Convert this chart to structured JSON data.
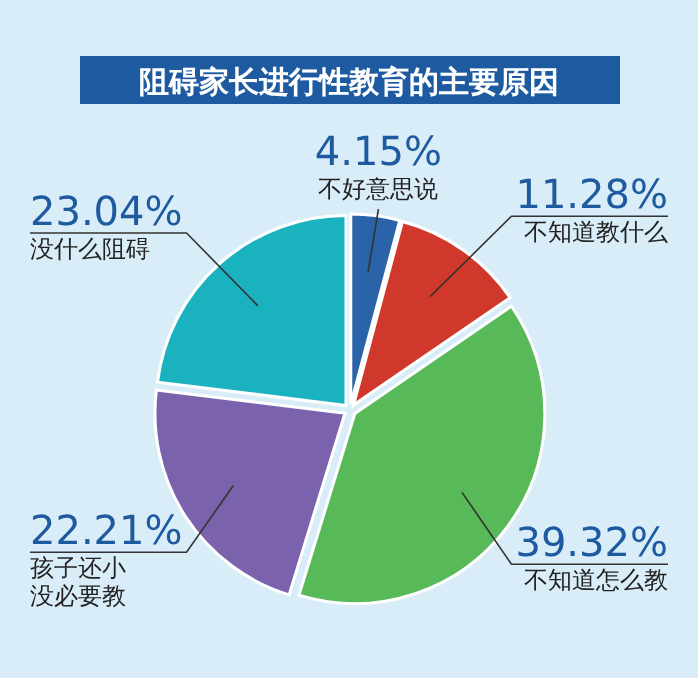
{
  "chart_data": {
    "type": "pie",
    "title": "阻碍家长进行性教育的主要原因",
    "categories": [
      "不好意思说",
      "不知道教什么",
      "不知道怎么教",
      "孩子还小没必要教",
      "没什么阻碍"
    ],
    "values": [
      4.15,
      11.28,
      39.32,
      22.21,
      23.04
    ],
    "colors": [
      "#2b63a8",
      "#d0382b",
      "#57b957",
      "#7a62ad",
      "#1bb2c0"
    ],
    "value_labels": [
      "4.15%",
      "11.28%",
      "39.32%",
      "22.21%",
      "23.04%"
    ]
  }
}
